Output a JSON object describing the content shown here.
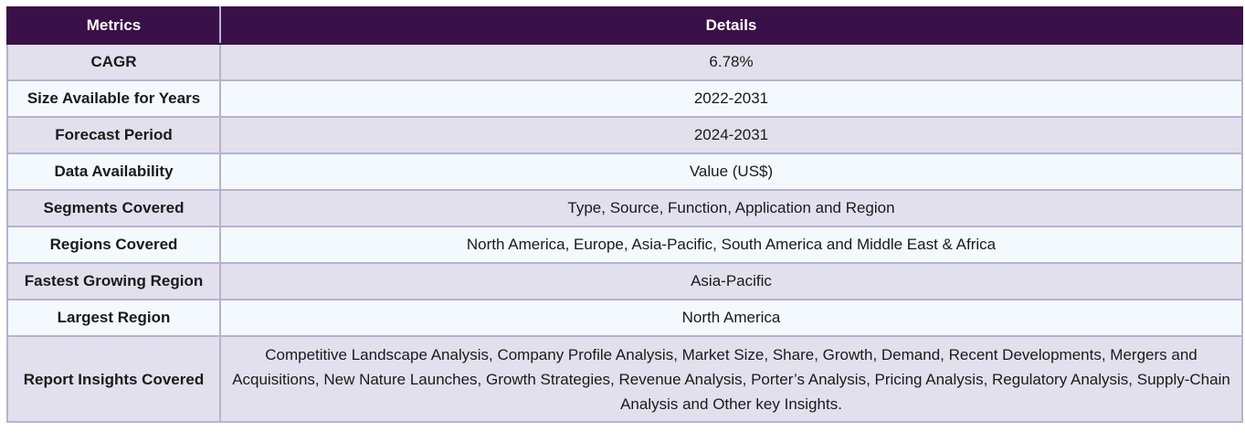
{
  "table": {
    "headers": [
      "Metrics",
      "Details"
    ],
    "rows": [
      {
        "metric": "CAGR",
        "detail": "6.78%"
      },
      {
        "metric": "Size Available for Years",
        "detail": "2022-2031"
      },
      {
        "metric": "Forecast Period",
        "detail": "2024-2031"
      },
      {
        "metric": "Data Availability",
        "detail": "Value (US$)"
      },
      {
        "metric": "Segments Covered",
        "detail": "Type, Source, Function, Application and Region"
      },
      {
        "metric": "Regions Covered",
        "detail": "North America, Europe, Asia-Pacific, South America and Middle East & Africa"
      },
      {
        "metric": "Fastest Growing Region",
        "detail": "Asia-Pacific"
      },
      {
        "metric": "Largest Region",
        "detail": "North America"
      },
      {
        "metric": "Report Insights Covered",
        "detail": "Competitive Landscape Analysis, Company Profile Analysis, Market Size, Share, Growth, Demand, Recent Developments, Mergers and Acquisitions, New Nature Launches, Growth Strategies, Revenue Analysis, Porter’s Analysis, Pricing Analysis, Regulatory Analysis, Supply-Chain Analysis and Other key Insights."
      }
    ]
  },
  "colors": {
    "header_bg": "#3a1048",
    "row_odd_bg": "#e3e0ed",
    "row_even_bg": "#f3f9fc",
    "border": "#b9b1d1"
  }
}
